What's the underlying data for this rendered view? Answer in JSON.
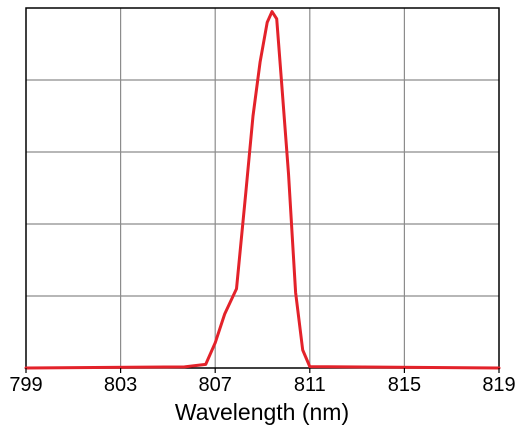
{
  "chart_data": {
    "type": "line",
    "title": "",
    "xlabel": "Wavelength (nm)",
    "ylabel": "",
    "xlim": [
      799,
      819
    ],
    "ylim": [
      0,
      1
    ],
    "xticks": [
      799,
      803,
      807,
      811,
      815,
      819
    ],
    "xtick_labels": [
      "799",
      "803",
      "807",
      "811",
      "815",
      "819"
    ],
    "y_gridlines": [
      0.2,
      0.4,
      0.6,
      0.8
    ],
    "grid": true,
    "legend": "none",
    "colors": {
      "line": "#e3222a",
      "grid": "#8c8c8c",
      "frame": "#000000",
      "background": "#ffffff"
    },
    "series": [
      {
        "x": [
          799,
          805.7,
          806.6,
          807.0,
          807.4,
          807.9,
          808.3,
          808.6,
          808.9,
          809.2,
          809.4,
          809.6,
          809.8,
          810.1,
          810.4,
          810.7,
          811.0,
          812.5,
          819
        ],
        "y": [
          0,
          0.003,
          0.01,
          0.07,
          0.15,
          0.22,
          0.49,
          0.7,
          0.85,
          0.96,
          0.99,
          0.97,
          0.8,
          0.54,
          0.21,
          0.05,
          0.004,
          0.003,
          0
        ]
      }
    ]
  }
}
